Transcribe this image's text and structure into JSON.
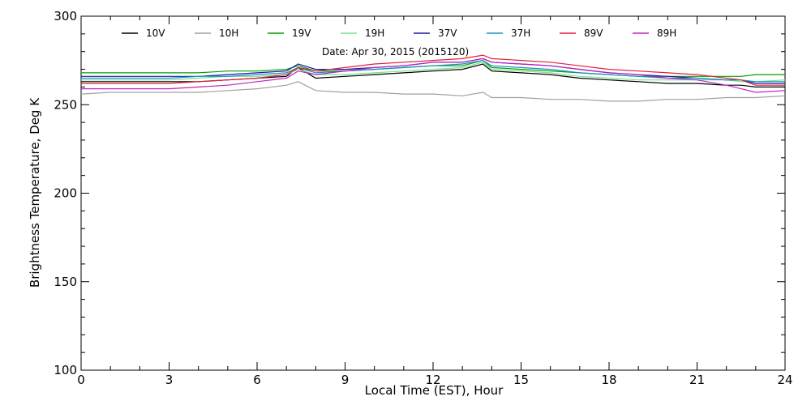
{
  "chart_data": {
    "type": "line",
    "title": "",
    "annotation": "Date: Apr 30, 2015 (2015120)",
    "xlabel": "Local Time (EST), Hour",
    "ylabel": "Brightness Temperature, Deg K",
    "xlim": [
      0,
      24
    ],
    "ylim": [
      100,
      300
    ],
    "xticks": [
      0,
      3,
      6,
      9,
      12,
      15,
      18,
      21,
      24
    ],
    "yticks": [
      100,
      150,
      200,
      250,
      300
    ],
    "grid": false,
    "legend_position": "top",
    "x": [
      0,
      1,
      2,
      3,
      4,
      5,
      6,
      7,
      7.4,
      8,
      9,
      10,
      11,
      12,
      13,
      13.7,
      14,
      15,
      16,
      17,
      18,
      19,
      20,
      21,
      22,
      22.5,
      23,
      24
    ],
    "series": [
      {
        "name": "10V",
        "color": "#000000",
        "values": [
          263,
          263,
          263,
          263,
          263,
          264,
          265,
          266,
          271,
          265,
          266,
          267,
          268,
          269,
          270,
          273,
          269,
          268,
          267,
          265,
          264,
          263,
          262,
          262,
          261,
          261,
          260,
          260
        ]
      },
      {
        "name": "10H",
        "color": "#a0a0a0",
        "values": [
          256,
          257,
          257,
          257,
          257,
          258,
          259,
          261,
          263,
          258,
          257,
          257,
          256,
          256,
          255,
          257,
          254,
          254,
          253,
          253,
          252,
          252,
          253,
          253,
          254,
          254,
          254,
          255
        ]
      },
      {
        "name": "19V",
        "color": "#00a000",
        "values": [
          268,
          268,
          268,
          268,
          268,
          269,
          269,
          270,
          272,
          269,
          269,
          270,
          271,
          272,
          272,
          275,
          271,
          270,
          269,
          268,
          267,
          266,
          266,
          266,
          266,
          266,
          267,
          267
        ]
      },
      {
        "name": "19H",
        "color": "#7fe08a",
        "values": [
          264,
          264,
          264,
          264,
          265,
          266,
          266,
          267,
          270,
          267,
          267,
          268,
          269,
          270,
          271,
          274,
          270,
          269,
          268,
          266,
          265,
          264,
          264,
          264,
          264,
          263,
          263,
          264
        ]
      },
      {
        "name": "37V",
        "color": "#1a1aa0",
        "values": [
          266,
          266,
          266,
          266,
          266,
          267,
          268,
          269,
          273,
          270,
          270,
          271,
          272,
          274,
          274,
          276,
          274,
          273,
          272,
          270,
          268,
          267,
          266,
          265,
          264,
          264,
          262,
          262
        ]
      },
      {
        "name": "37H",
        "color": "#1a90c8",
        "values": [
          265,
          265,
          265,
          265,
          266,
          266,
          267,
          268,
          271,
          268,
          269,
          270,
          271,
          272,
          273,
          275,
          272,
          271,
          270,
          268,
          267,
          266,
          265,
          265,
          264,
          264,
          263,
          263
        ]
      },
      {
        "name": "89V",
        "color": "#e0203a",
        "values": [
          262,
          262,
          262,
          262,
          263,
          264,
          265,
          267,
          271,
          269,
          271,
          273,
          274,
          275,
          276,
          278,
          276,
          275,
          274,
          272,
          270,
          269,
          268,
          267,
          265,
          264,
          261,
          261
        ]
      },
      {
        "name": "89H",
        "color": "#c020c0",
        "values": [
          259,
          259,
          259,
          259,
          260,
          261,
          263,
          265,
          269,
          267,
          269,
          271,
          272,
          274,
          274,
          276,
          274,
          273,
          272,
          270,
          268,
          267,
          265,
          264,
          261,
          259,
          257,
          258
        ]
      }
    ]
  }
}
